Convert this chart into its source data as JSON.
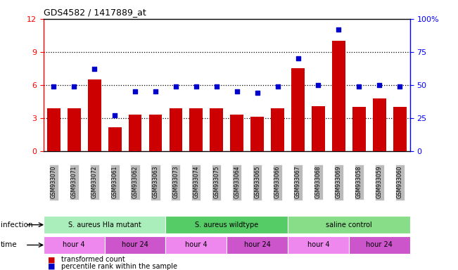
{
  "title": "GDS4582 / 1417889_at",
  "samples": [
    "GSM933070",
    "GSM933071",
    "GSM933072",
    "GSM933061",
    "GSM933062",
    "GSM933063",
    "GSM933073",
    "GSM933074",
    "GSM933075",
    "GSM933064",
    "GSM933065",
    "GSM933066",
    "GSM933067",
    "GSM933068",
    "GSM933069",
    "GSM933058",
    "GSM933059",
    "GSM933060"
  ],
  "bar_values": [
    3.9,
    3.9,
    6.5,
    2.2,
    3.3,
    3.3,
    3.9,
    3.9,
    3.9,
    3.3,
    3.1,
    3.9,
    7.5,
    4.1,
    10.0,
    4.0,
    4.8,
    4.0
  ],
  "dot_values": [
    49,
    49,
    62,
    27,
    45,
    45,
    49,
    49,
    49,
    45,
    44,
    49,
    70,
    50,
    92,
    49,
    50,
    49
  ],
  "bar_color": "#cc0000",
  "dot_color": "#0000cc",
  "ylim_left": [
    0,
    12
  ],
  "ylim_right": [
    0,
    100
  ],
  "yticks_left": [
    0,
    3,
    6,
    9,
    12
  ],
  "yticks_right": [
    0,
    25,
    50,
    75,
    100
  ],
  "ytick_labels_right": [
    "0",
    "25",
    "50",
    "75",
    "100%"
  ],
  "infection_groups": [
    {
      "label": "S. aureus Hla mutant",
      "start": 0,
      "end": 6,
      "color": "#aaeebb"
    },
    {
      "label": "S. aureus wildtype",
      "start": 6,
      "end": 12,
      "color": "#55cc66"
    },
    {
      "label": "saline control",
      "start": 12,
      "end": 18,
      "color": "#88dd88"
    }
  ],
  "time_groups": [
    {
      "label": "hour 4",
      "start": 0,
      "end": 3,
      "color": "#ee88ee"
    },
    {
      "label": "hour 24",
      "start": 3,
      "end": 6,
      "color": "#cc55cc"
    },
    {
      "label": "hour 4",
      "start": 6,
      "end": 9,
      "color": "#ee88ee"
    },
    {
      "label": "hour 24",
      "start": 9,
      "end": 12,
      "color": "#cc55cc"
    },
    {
      "label": "hour 4",
      "start": 12,
      "end": 15,
      "color": "#ee88ee"
    },
    {
      "label": "hour 24",
      "start": 15,
      "end": 18,
      "color": "#cc55cc"
    }
  ],
  "infection_label": "infection",
  "time_label": "time",
  "legend_bar": "transformed count",
  "legend_dot": "percentile rank within the sample",
  "background_color": "#ffffff",
  "tick_bg_color": "#bbbbbb",
  "grid_dotted_vals": [
    3,
    6,
    9
  ]
}
